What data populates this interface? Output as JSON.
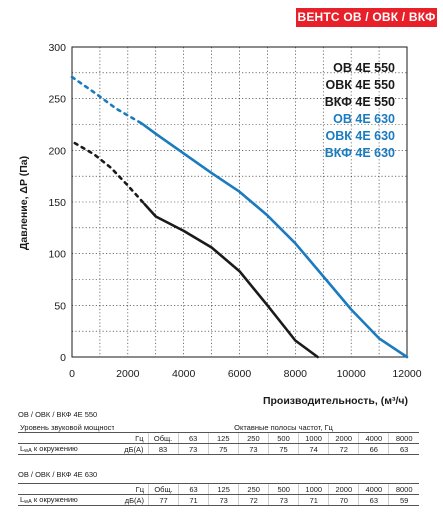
{
  "header": {
    "tag": "ВЕНТС ОВ / ОВК / ВКФ"
  },
  "chart_data": {
    "type": "line",
    "xlabel": "Производительность, (м³/ч)",
    "ylabel": "Давление, ΔP (Па)",
    "xlim": [
      0,
      12000
    ],
    "ylim": [
      0,
      300
    ],
    "xticks": [
      "0",
      "2000",
      "4000",
      "6000",
      "8000",
      "10000",
      "12000"
    ],
    "yticks": [
      "0",
      "50",
      "100",
      "150",
      "200",
      "250",
      "300"
    ],
    "grid": true,
    "legend_placement": "top-right",
    "legend": [
      {
        "label": "ОВ 4E 550",
        "color": "#1a1a1a"
      },
      {
        "label": "ОВК 4E 550",
        "color": "#1a1a1a"
      },
      {
        "label": "ВКФ 4E 550",
        "color": "#1a1a1a"
      },
      {
        "label": "ОВ 4E 630",
        "color": "#1a7bbf"
      },
      {
        "label": "ОВК 4E 630",
        "color": "#1a7bbf"
      },
      {
        "label": "ВКФ 4E 630",
        "color": "#1a7bbf"
      }
    ],
    "series": [
      {
        "group": "550",
        "color": "#1a1a1a",
        "dashed_x": [
          100,
          800,
          1400,
          2000,
          2600
        ],
        "dashed_y": [
          207,
          196,
          183,
          166,
          148
        ],
        "solid_x": [
          2600,
          3000,
          4000,
          5000,
          6000,
          7000,
          8000,
          8800
        ],
        "solid_y": [
          148,
          136,
          122,
          106,
          83,
          50,
          16,
          0
        ]
      },
      {
        "group": "630",
        "color": "#1a7bbf",
        "dashed_x": [
          0,
          800,
          1600,
          2500
        ],
        "dashed_y": [
          271,
          256,
          240,
          226
        ],
        "solid_x": [
          2500,
          3000,
          4000,
          5000,
          6000,
          7000,
          8000,
          9000,
          10000,
          11000,
          12000
        ],
        "solid_y": [
          226,
          216,
          197,
          178,
          160,
          137,
          110,
          78,
          46,
          18,
          0
        ]
      }
    ]
  },
  "table550": {
    "title": "ОВ / ОВК / ВКФ 4E 550",
    "row_label": "Уровень звуковой мощности",
    "band_label": "Октавные полосы частот, Гц",
    "hz_unit": "Гц",
    "total_label": "Общ.",
    "freqs": [
      "63",
      "125",
      "250",
      "500",
      "1000",
      "2000",
      "4000",
      "8000"
    ],
    "lwa_label": "к окружению",
    "lwa_main": "L",
    "lwa_sub": "wA",
    "lwa_unit": "дБ(А)",
    "values": [
      "83",
      "73",
      "75",
      "73",
      "75",
      "74",
      "72",
      "66",
      "63"
    ]
  },
  "table630": {
    "title": "ОВ / ОВК / ВКФ 4E 630",
    "hz_unit": "Гц",
    "total_label": "Общ.",
    "freqs": [
      "63",
      "125",
      "250",
      "500",
      "1000",
      "2000",
      "4000",
      "8000"
    ],
    "lwa_label": "к окружению",
    "lwa_main": "L",
    "lwa_sub": "wA",
    "lwa_unit": "дБ(А)",
    "values": [
      "77",
      "71",
      "73",
      "72",
      "73",
      "71",
      "70",
      "63",
      "59"
    ]
  }
}
